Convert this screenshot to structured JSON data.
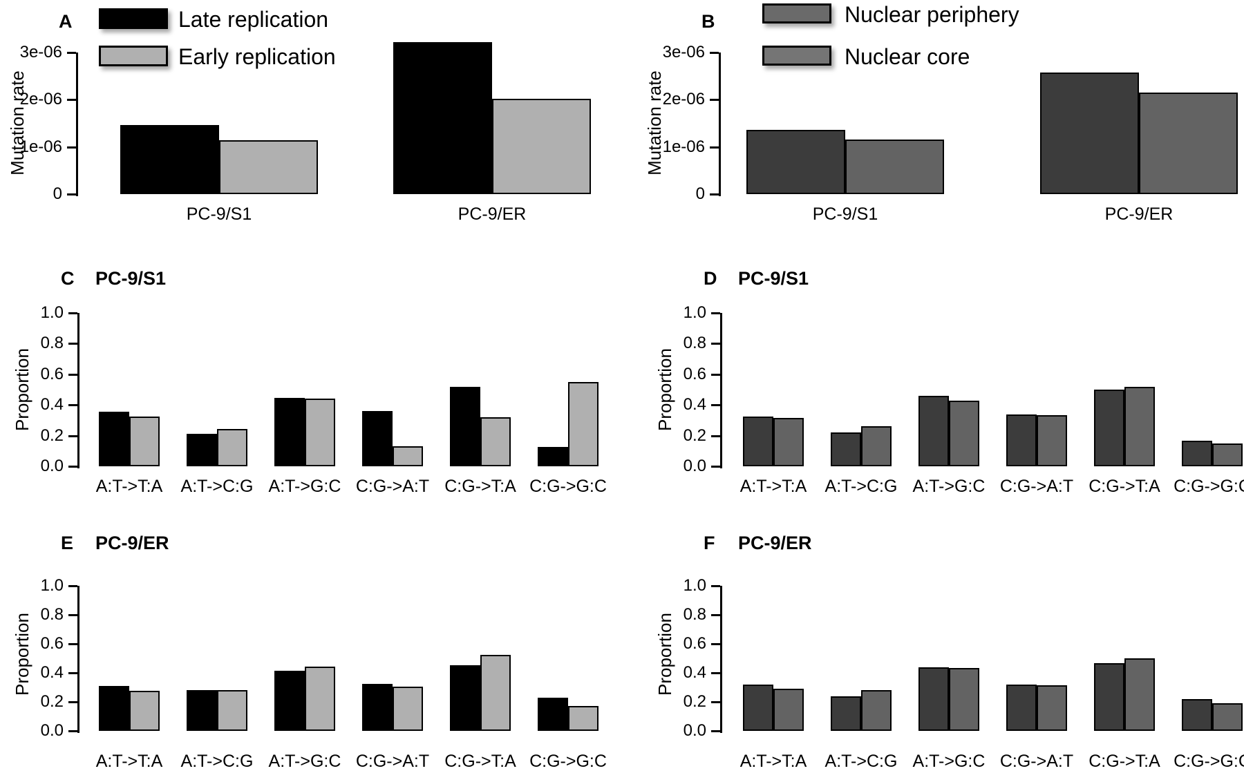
{
  "figure_title": "",
  "chart_data": [
    {
      "type": "bar",
      "letter": "A",
      "title": "",
      "ylabel": "Mutation rate",
      "ylim": [
        0,
        3e-06
      ],
      "yticks": {
        "values": [
          0,
          1e-06,
          2e-06,
          3e-06
        ],
        "labels": [
          "0",
          "1e-06",
          "2e-06",
          "3e-06"
        ]
      },
      "grid": false,
      "legend_position": "top-left-inside",
      "categories": [
        "PC-9/S1",
        "PC-9/ER"
      ],
      "series": [
        {
          "name": "Late replication",
          "color": "#000000",
          "values": [
            1.47e-06,
            3.22e-06
          ]
        },
        {
          "name": "Early replication",
          "color": "#b0b0b0",
          "values": [
            1.14e-06,
            2.02e-06
          ]
        }
      ],
      "legend": [
        {
          "label": "Late replication",
          "swatch": "#000000"
        },
        {
          "label": "Early replication",
          "swatch": "#b0b0b0"
        }
      ]
    },
    {
      "type": "bar",
      "letter": "B",
      "title": "",
      "ylabel": "Mutation rate",
      "ylim": [
        0,
        3e-06
      ],
      "yticks": {
        "values": [
          0,
          1e-06,
          2e-06,
          3e-06
        ],
        "labels": [
          "0",
          "1e-06",
          "2e-06",
          "3e-06"
        ]
      },
      "grid": false,
      "legend_position": "top-left-inside",
      "categories": [
        "PC-9/S1",
        "PC-9/ER"
      ],
      "series": [
        {
          "name": "Nuclear periphery",
          "color": "#3c3c3c",
          "values": [
            1.36e-06,
            2.58e-06
          ]
        },
        {
          "name": "Nuclear core",
          "color": "#636363",
          "values": [
            1.16e-06,
            2.15e-06
          ]
        }
      ],
      "legend": [
        {
          "label": "Nuclear periphery",
          "swatch": "#6a6a6a"
        },
        {
          "label": "Nuclear core",
          "swatch": "#757575"
        }
      ]
    },
    {
      "type": "bar",
      "letter": "C",
      "title": "PC-9/S1",
      "ylabel": "Proportion",
      "ylim": [
        0,
        1.0
      ],
      "yticks": {
        "values": [
          0,
          0.2,
          0.4,
          0.6,
          0.8,
          1.0
        ],
        "labels": [
          "0.0",
          "0.2",
          "0.4",
          "0.6",
          "0.8",
          "1.0"
        ]
      },
      "grid": false,
      "categories": [
        "A:T->T:A",
        "A:T->C:G",
        "A:T->G:C",
        "C:G->A:T",
        "C:G->T:A",
        "C:G->G:C"
      ],
      "series": [
        {
          "name": "Late replication",
          "color": "#000000",
          "values": [
            0.355,
            0.21,
            0.445,
            0.36,
            0.52,
            0.125
          ]
        },
        {
          "name": "Early replication",
          "color": "#b0b0b0",
          "values": [
            0.325,
            0.245,
            0.44,
            0.13,
            0.32,
            0.55
          ]
        }
      ]
    },
    {
      "type": "bar",
      "letter": "D",
      "title": "PC-9/S1",
      "ylabel": "Proportion",
      "ylim": [
        0,
        1.0
      ],
      "yticks": {
        "values": [
          0,
          0.2,
          0.4,
          0.6,
          0.8,
          1.0
        ],
        "labels": [
          "0.0",
          "0.2",
          "0.4",
          "0.6",
          "0.8",
          "1.0"
        ]
      },
      "grid": false,
      "categories": [
        "A:T->T:A",
        "A:T->C:G",
        "A:T->G:C",
        "C:G->A:T",
        "C:G->T:A",
        "C:G->G:C"
      ],
      "series": [
        {
          "name": "Nuclear periphery",
          "color": "#3c3c3c",
          "values": [
            0.325,
            0.22,
            0.46,
            0.34,
            0.5,
            0.165
          ]
        },
        {
          "name": "Nuclear core",
          "color": "#636363",
          "values": [
            0.315,
            0.26,
            0.43,
            0.335,
            0.52,
            0.15
          ]
        }
      ]
    },
    {
      "type": "bar",
      "letter": "E",
      "title": "PC-9/ER",
      "ylabel": "Proportion",
      "ylim": [
        0,
        1.0
      ],
      "yticks": {
        "values": [
          0,
          0.2,
          0.4,
          0.6,
          0.8,
          1.0
        ],
        "labels": [
          "0.0",
          "0.2",
          "0.4",
          "0.6",
          "0.8",
          "1.0"
        ]
      },
      "grid": false,
      "categories": [
        "A:T->T:A",
        "A:T->C:G",
        "A:T->G:C",
        "C:G->A:T",
        "C:G->T:A",
        "C:G->G:C"
      ],
      "series": [
        {
          "name": "Late replication",
          "color": "#000000",
          "values": [
            0.31,
            0.28,
            0.415,
            0.325,
            0.45,
            0.23
          ]
        },
        {
          "name": "Early replication",
          "color": "#b0b0b0",
          "values": [
            0.275,
            0.28,
            0.445,
            0.305,
            0.525,
            0.17
          ]
        }
      ]
    },
    {
      "type": "bar",
      "letter": "F",
      "title": "PC-9/ER",
      "ylabel": "Proportion",
      "ylim": [
        0,
        1.0
      ],
      "yticks": {
        "values": [
          0,
          0.2,
          0.4,
          0.6,
          0.8,
          1.0
        ],
        "labels": [
          "0.0",
          "0.2",
          "0.4",
          "0.6",
          "0.8",
          "1.0"
        ]
      },
      "grid": false,
      "categories": [
        "A:T->T:A",
        "A:T->C:G",
        "A:T->G:C",
        "C:G->A:T",
        "C:G->T:A",
        "C:G->G:C"
      ],
      "series": [
        {
          "name": "Nuclear periphery",
          "color": "#3c3c3c",
          "values": [
            0.32,
            0.24,
            0.44,
            0.32,
            0.465,
            0.22
          ]
        },
        {
          "name": "Nuclear core",
          "color": "#636363",
          "values": [
            0.29,
            0.28,
            0.435,
            0.315,
            0.5,
            0.19
          ]
        }
      ]
    }
  ]
}
